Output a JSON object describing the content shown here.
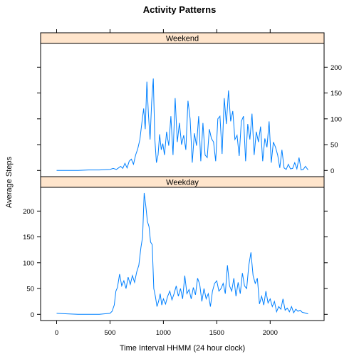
{
  "chart_data": {
    "type": "line",
    "title": "Activity Patterns",
    "xlabel": "Time Interval HHMM (24 hour clock)",
    "ylabel": "Average Steps",
    "xlim": [
      -150,
      2505
    ],
    "ylim": [
      -12,
      246
    ],
    "x_ticks": [
      0,
      500,
      1000,
      1500,
      2000
    ],
    "y_ticks": [
      0,
      50,
      100,
      150,
      200
    ],
    "line_color": "#0080ff",
    "strip_color": "#ffe5cc",
    "panels": [
      {
        "name": "Weekend",
        "y_axis_side": "right",
        "x": [
          0,
          100,
          200,
          300,
          400,
          500,
          530,
          560,
          600,
          620,
          640,
          660,
          680,
          700,
          720,
          740,
          760,
          780,
          800,
          815,
          830,
          845,
          860,
          875,
          890,
          905,
          920,
          935,
          950,
          965,
          980,
          995,
          1010,
          1030,
          1050,
          1070,
          1090,
          1110,
          1130,
          1150,
          1170,
          1190,
          1210,
          1230,
          1250,
          1270,
          1290,
          1310,
          1330,
          1350,
          1370,
          1390,
          1410,
          1430,
          1450,
          1470,
          1490,
          1510,
          1530,
          1550,
          1570,
          1590,
          1610,
          1630,
          1650,
          1670,
          1690,
          1710,
          1730,
          1750,
          1770,
          1790,
          1810,
          1830,
          1850,
          1870,
          1890,
          1910,
          1930,
          1950,
          1970,
          1990,
          2010,
          2030,
          2050,
          2070,
          2090,
          2110,
          2130,
          2150,
          2170,
          2190,
          2210,
          2230,
          2250,
          2270,
          2290,
          2310,
          2330,
          2355
        ],
        "y": [
          0,
          0,
          0,
          1,
          1,
          2,
          4,
          2,
          8,
          4,
          14,
          5,
          18,
          22,
          12,
          30,
          42,
          60,
          95,
          120,
          80,
          172,
          108,
          60,
          132,
          178,
          60,
          15,
          30,
          70,
          40,
          52,
          30,
          75,
          48,
          105,
          30,
          140,
          55,
          92,
          50,
          68,
          40,
          135,
          100,
          15,
          72,
          48,
          105,
          18,
          92,
          30,
          25,
          80,
          62,
          55,
          18,
          100,
          105,
          32,
          140,
          90,
          155,
          95,
          115,
          60,
          68,
          28,
          95,
          105,
          18,
          90,
          60,
          110,
          30,
          75,
          55,
          85,
          18,
          62,
          45,
          95,
          15,
          55,
          45,
          30,
          5,
          40,
          5,
          2,
          12,
          3,
          4,
          15,
          3,
          25,
          1,
          2,
          8,
          1
        ]
      },
      {
        "name": "Weekday",
        "y_axis_side": "left",
        "x": [
          0,
          100,
          200,
          300,
          400,
          500,
          520,
          540,
          555,
          570,
          590,
          610,
          630,
          650,
          670,
          690,
          710,
          730,
          750,
          770,
          790,
          805,
          820,
          835,
          850,
          865,
          880,
          895,
          910,
          925,
          940,
          955,
          970,
          985,
          1000,
          1020,
          1040,
          1060,
          1080,
          1100,
          1120,
          1140,
          1160,
          1180,
          1200,
          1220,
          1240,
          1260,
          1280,
          1300,
          1320,
          1340,
          1360,
          1380,
          1400,
          1420,
          1440,
          1460,
          1480,
          1500,
          1520,
          1540,
          1560,
          1580,
          1600,
          1620,
          1640,
          1660,
          1680,
          1700,
          1720,
          1740,
          1760,
          1780,
          1800,
          1820,
          1840,
          1860,
          1880,
          1900,
          1920,
          1940,
          1960,
          1980,
          2000,
          2020,
          2040,
          2060,
          2080,
          2100,
          2120,
          2140,
          2160,
          2180,
          2200,
          2220,
          2240,
          2260,
          2280,
          2300,
          2320,
          2355
        ],
        "y": [
          2,
          1,
          0,
          0,
          0,
          2,
          6,
          18,
          45,
          52,
          78,
          55,
          65,
          50,
          72,
          58,
          75,
          62,
          82,
          95,
          130,
          150,
          235,
          210,
          180,
          170,
          140,
          135,
          50,
          35,
          15,
          25,
          40,
          18,
          30,
          20,
          35,
          45,
          28,
          40,
          55,
          35,
          50,
          30,
          75,
          40,
          48,
          30,
          52,
          38,
          70,
          58,
          25,
          50,
          30,
          40,
          15,
          45,
          60,
          65,
          45,
          50,
          60,
          40,
          95,
          55,
          45,
          70,
          35,
          62,
          40,
          80,
          55,
          50,
          95,
          120,
          75,
          60,
          70,
          20,
          35,
          18,
          45,
          22,
          30,
          15,
          25,
          5,
          15,
          10,
          30,
          8,
          12,
          5,
          15,
          3,
          10,
          6,
          8,
          4,
          3,
          1
        ]
      }
    ]
  }
}
